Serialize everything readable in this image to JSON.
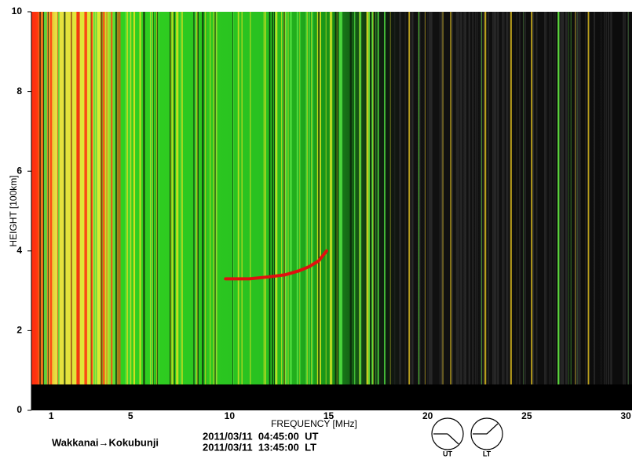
{
  "chart_data": {
    "type": "ionogram",
    "x_label": "FREQUENCY [MHz]",
    "y_label": "HEIGHT [100km]",
    "xlim": [
      0,
      30
    ],
    "ylim": [
      0,
      10
    ],
    "xticks": [
      1,
      5,
      10,
      15,
      20,
      25,
      30
    ],
    "yticks": [
      0,
      2,
      4,
      6,
      8,
      10
    ],
    "trace": {
      "x": [
        9.8,
        11,
        12,
        12.8,
        13.5,
        14,
        14.5,
        14.9
      ],
      "values": [
        3.3,
        3.3,
        3.35,
        3.4,
        3.5,
        3.6,
        3.75,
        4.0
      ],
      "color": "#e01010"
    },
    "path": "Wakkanai→Kokubunji",
    "ut_time": "2011/03/11  04:45:00  UT",
    "lt_time": "2011/03/11  13:45:00  LT",
    "ut_clock": "UT",
    "lt_clock": "LT"
  }
}
